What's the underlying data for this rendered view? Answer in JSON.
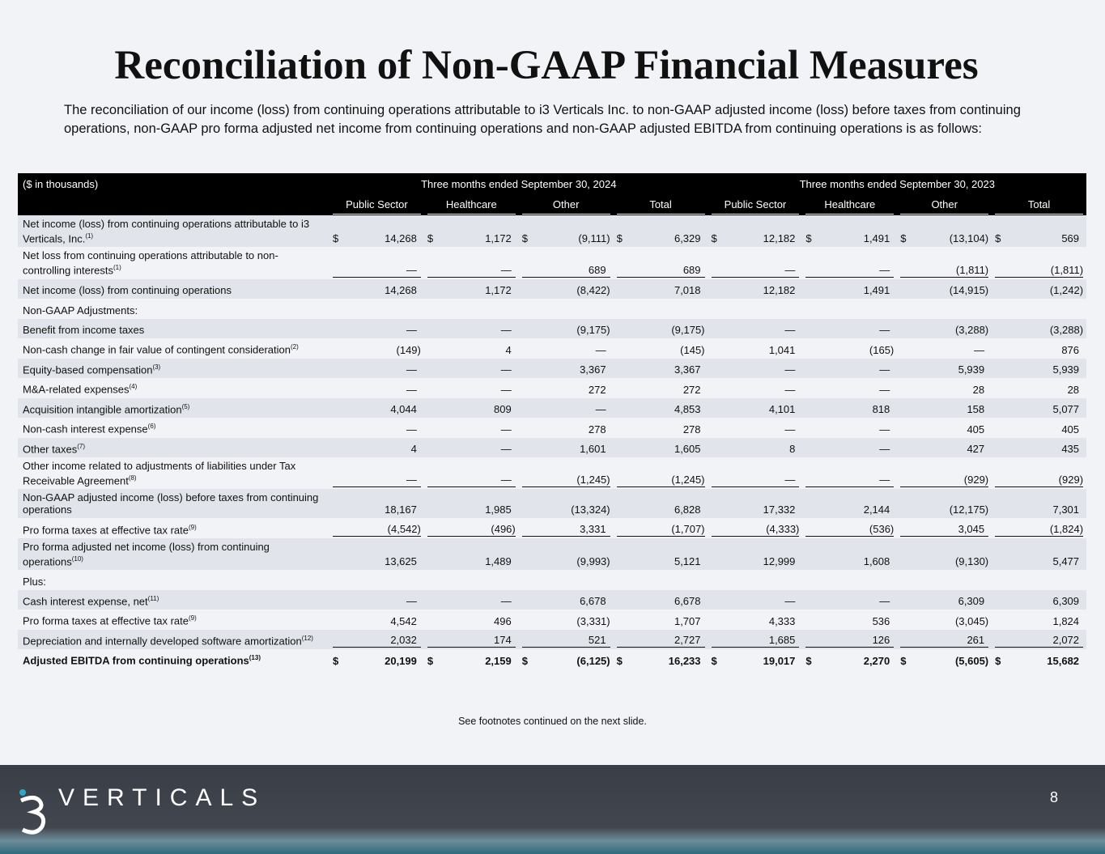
{
  "header": {
    "title": "Reconciliation of Non-GAAP Financial Measures",
    "intro": "The reconciliation of our income (loss) from continuing operations attributable to i3 Verticals Inc. to non-GAAP adjusted income (loss) before taxes from continuing operations, non-GAAP pro forma adjusted net income from continuing operations and non-GAAP adjusted EBITDA from continuing operations is as follows:"
  },
  "table": {
    "unit_label": "($ in thousands)",
    "periods": [
      {
        "label": "Three months ended September 30, 2024",
        "columns": [
          "Public Sector",
          "Healthcare",
          "Other",
          "Total"
        ]
      },
      {
        "label": "Three months ended September 30, 2023",
        "columns": [
          "Public Sector",
          "Healthcare",
          "Other",
          "Total"
        ]
      }
    ],
    "rows": [
      {
        "label": "Net income (loss) from continuing operations attributable to i3 Verticals, Inc.",
        "note": "(1)",
        "currency": "$",
        "cells": [
          "14,268",
          "1,172",
          "(9,111)",
          "6,329",
          "12,182",
          "1,491",
          "(13,104)",
          "569"
        ]
      },
      {
        "label": "Net loss from continuing operations attributable to non-controlling interests",
        "note": "(1)",
        "rule": true,
        "cells": [
          "—",
          "—",
          "689",
          "689",
          "—",
          "—",
          "(1,811)",
          "(1,811)"
        ]
      },
      {
        "label": "Net income (loss) from continuing operations",
        "cells": [
          "14,268",
          "1,172",
          "(8,422)",
          "7,018",
          "12,182",
          "1,491",
          "(14,915)",
          "(1,242)"
        ]
      },
      {
        "label": "Non-GAAP Adjustments:",
        "cells": []
      },
      {
        "label": "Benefit from income taxes",
        "cells": [
          "—",
          "—",
          "(9,175)",
          "(9,175)",
          "—",
          "—",
          "(3,288)",
          "(3,288)"
        ]
      },
      {
        "label": "Non-cash change in fair value of contingent consideration",
        "note": "(2)",
        "cells": [
          "(149)",
          "4",
          "—",
          "(145)",
          "1,041",
          "(165)",
          "—",
          "876"
        ]
      },
      {
        "label": "Equity-based compensation",
        "note": "(3)",
        "cells": [
          "—",
          "—",
          "3,367",
          "3,367",
          "—",
          "—",
          "5,939",
          "5,939"
        ]
      },
      {
        "label": "M&A-related expenses",
        "note": "(4)",
        "cells": [
          "—",
          "—",
          "272",
          "272",
          "—",
          "—",
          "28",
          "28"
        ]
      },
      {
        "label": "Acquisition intangible amortization",
        "note": "(5)",
        "cells": [
          "4,044",
          "809",
          "—",
          "4,853",
          "4,101",
          "818",
          "158",
          "5,077"
        ]
      },
      {
        "label": "Non-cash interest expense",
        "note": "(6)",
        "cells": [
          "—",
          "—",
          "278",
          "278",
          "—",
          "—",
          "405",
          "405"
        ]
      },
      {
        "label": "Other taxes",
        "note": "(7)",
        "cells": [
          "4",
          "—",
          "1,601",
          "1,605",
          "8",
          "—",
          "427",
          "435"
        ]
      },
      {
        "label": "Other income related to adjustments of liabilities under Tax Receivable Agreement",
        "note": "(8)",
        "rule": true,
        "cells": [
          "—",
          "—",
          "(1,245)",
          "(1,245)",
          "—",
          "—",
          "(929)",
          "(929)"
        ]
      },
      {
        "label": "Non-GAAP adjusted income (loss) before taxes from continuing operations",
        "cells": [
          "18,167",
          "1,985",
          "(13,324)",
          "6,828",
          "17,332",
          "2,144",
          "(12,175)",
          "7,301"
        ]
      },
      {
        "label": "Pro forma taxes at effective tax rate",
        "note": "(9)",
        "rule": true,
        "cells": [
          "(4,542)",
          "(496)",
          "3,331",
          "(1,707)",
          "(4,333)",
          "(536)",
          "3,045",
          "(1,824)"
        ]
      },
      {
        "label": "Pro forma adjusted net income (loss) from continuing operations",
        "note": "(10)",
        "cells": [
          "13,625",
          "1,489",
          "(9,993)",
          "5,121",
          "12,999",
          "1,608",
          "(9,130)",
          "5,477"
        ]
      },
      {
        "label": "Plus:",
        "cells": []
      },
      {
        "label": "Cash interest expense, net",
        "note": "(11)",
        "cells": [
          "—",
          "—",
          "6,678",
          "6,678",
          "—",
          "—",
          "6,309",
          "6,309"
        ]
      },
      {
        "label": "Pro forma taxes at effective tax rate",
        "note": "(9)",
        "cells": [
          "4,542",
          "496",
          "(3,331)",
          "1,707",
          "4,333",
          "536",
          "(3,045)",
          "1,824"
        ]
      },
      {
        "label": "Depreciation and internally developed software amortization",
        "note": "(12)",
        "rule": true,
        "cells": [
          "2,032",
          "174",
          "521",
          "2,727",
          "1,685",
          "126",
          "261",
          "2,072"
        ]
      },
      {
        "label": "Adjusted EBITDA from continuing operations",
        "note": "(13)",
        "bold": true,
        "currency": "$",
        "cells": [
          "20,199",
          "2,159",
          "(6,125)",
          "16,233",
          "19,017",
          "2,270",
          "(5,605)",
          "15,682"
        ]
      }
    ]
  },
  "footnote": "See footnotes continued on the next slide.",
  "footer": {
    "brand": "VERTICALS",
    "page": "8"
  }
}
